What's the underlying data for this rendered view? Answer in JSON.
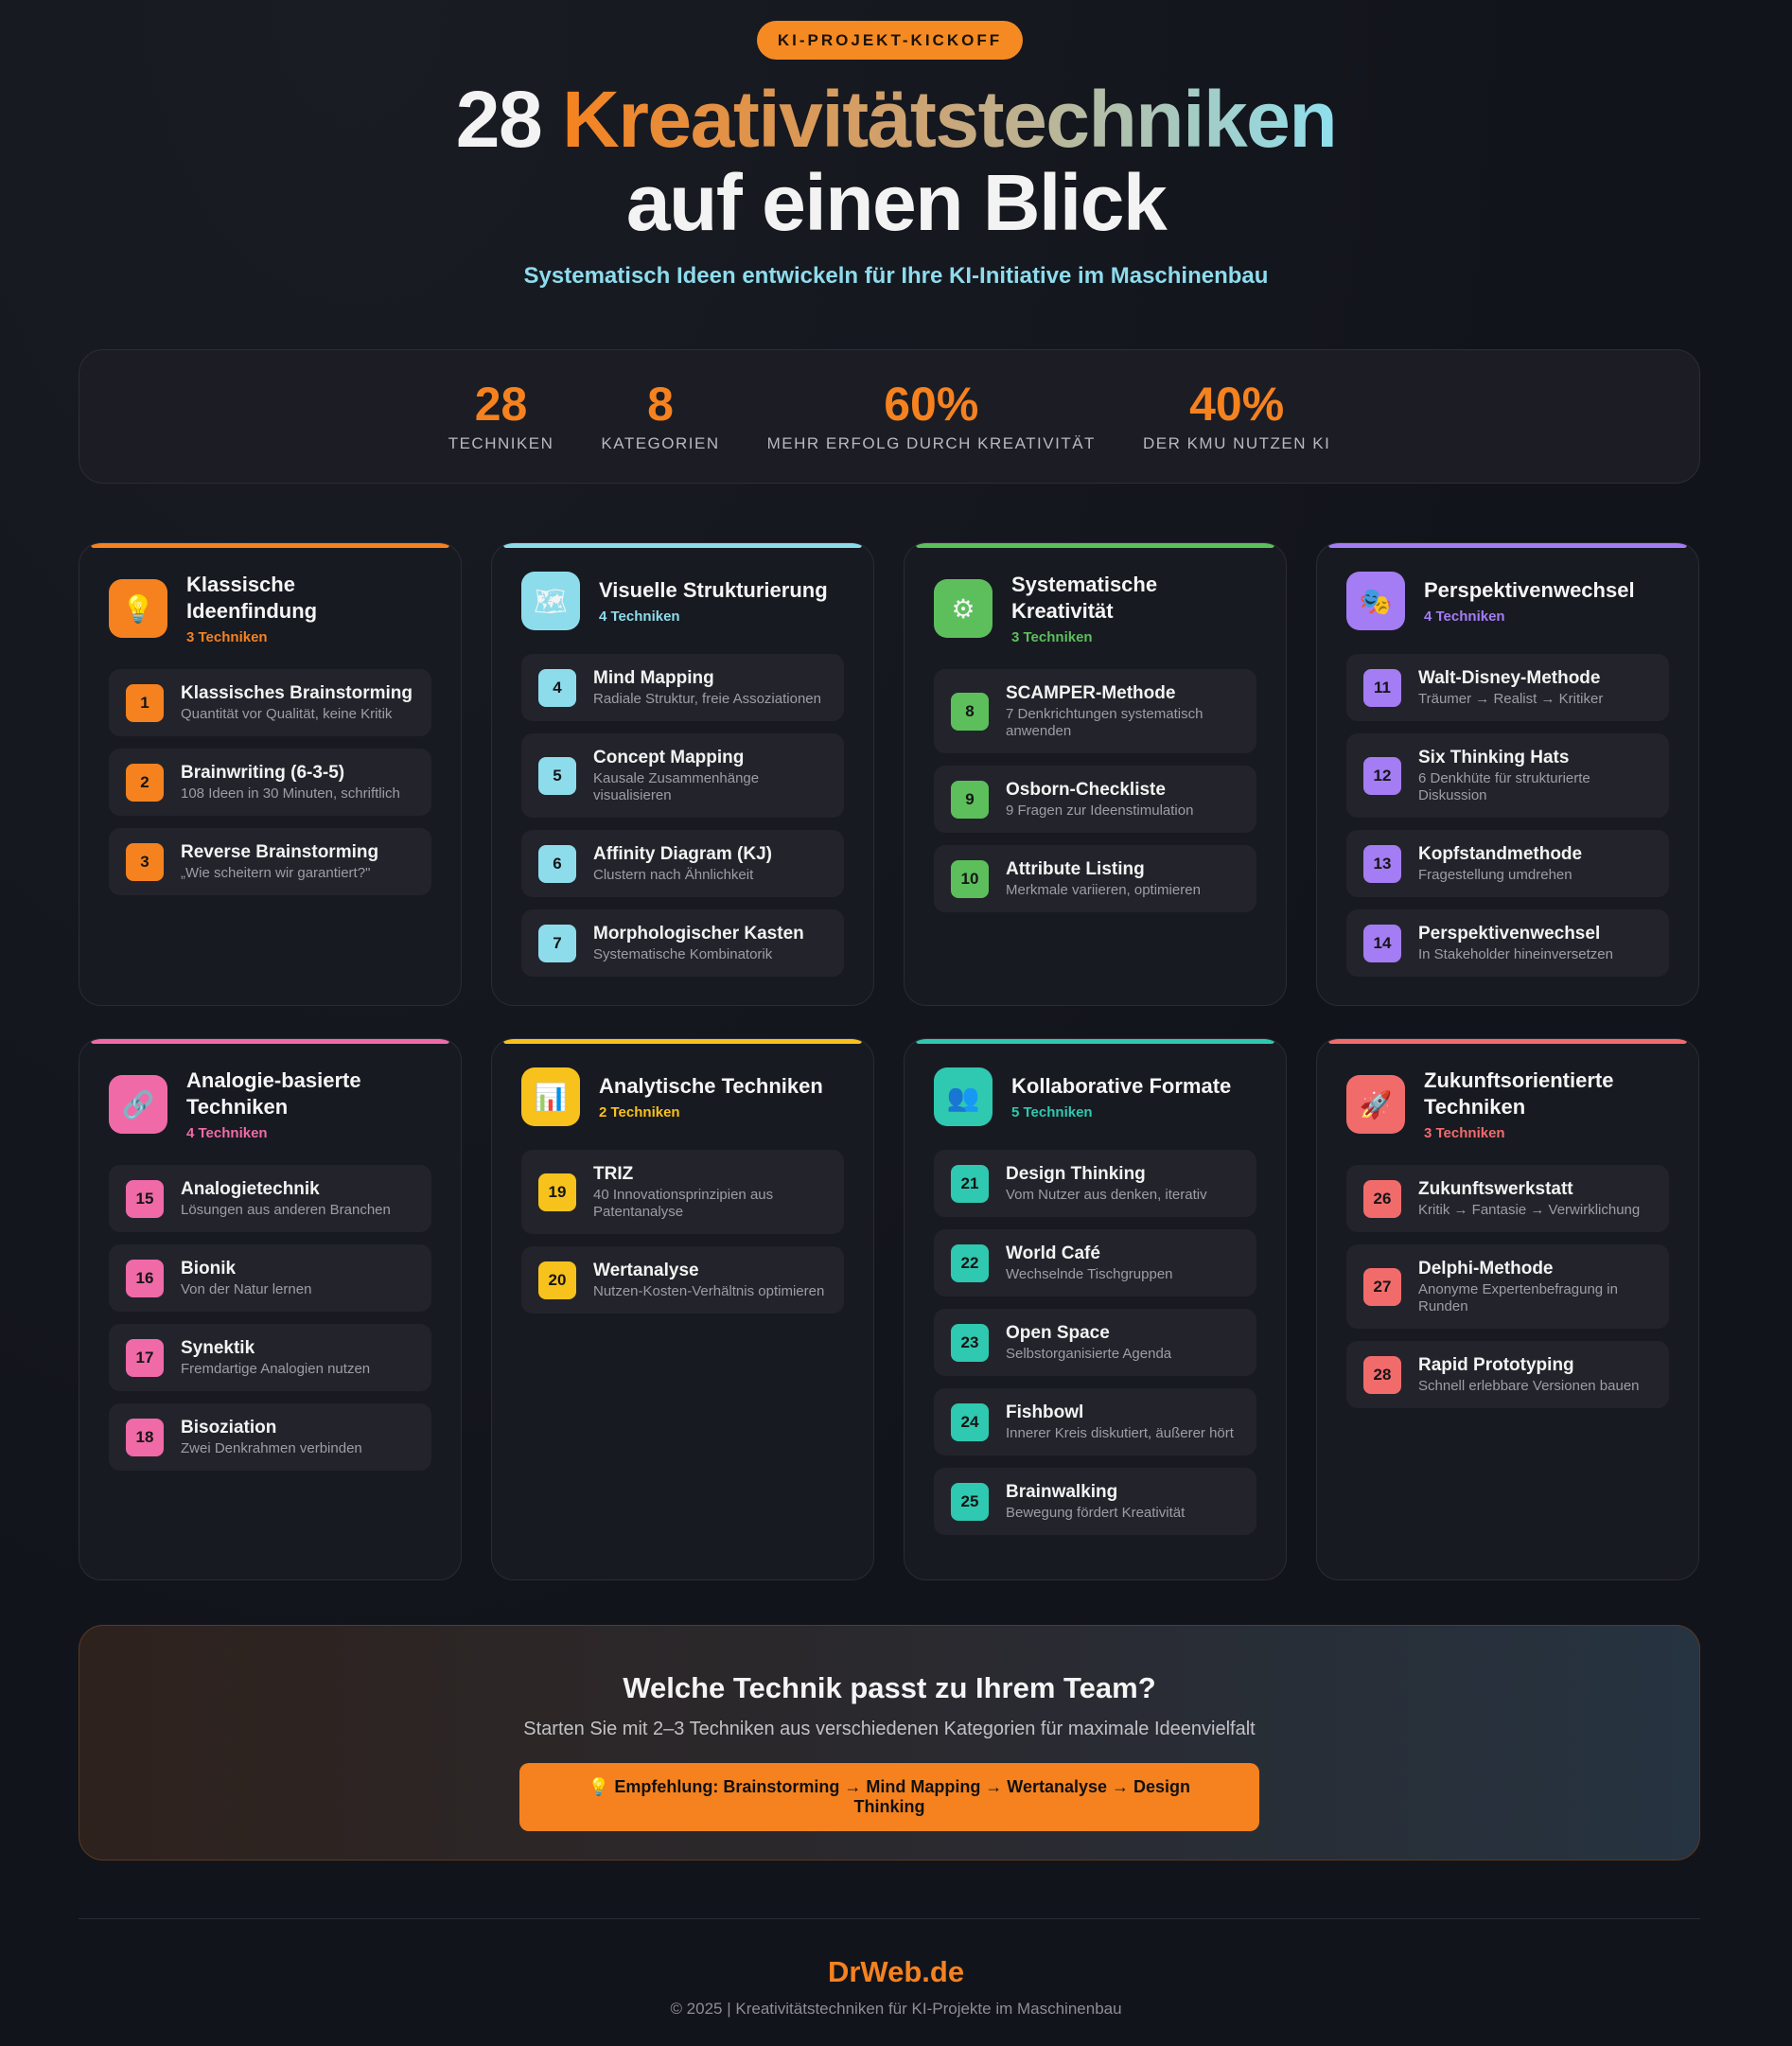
{
  "badge": "KI-PROJEKT-KICKOFF",
  "title": {
    "prefix": "28 ",
    "highlight": "Kreativitätstechniken",
    "line2": "auf einen Blick"
  },
  "subtitle": "Systematisch Ideen entwickeln für Ihre KI-Initiative im Maschinenbau",
  "stats": [
    {
      "value": "28",
      "label": "TECHNIKEN"
    },
    {
      "value": "8",
      "label": "KATEGORIEN"
    },
    {
      "value": "60%",
      "label": "MEHR ERFOLG DURCH KREATIVITÄT"
    },
    {
      "value": "40%",
      "label": "DER KMU NUTZEN KI"
    }
  ],
  "categories": [
    {
      "title": "Klassische Ideenfindung",
      "count": "3 Techniken",
      "icon": "lightbulb-icon",
      "glyph": "💡",
      "color": "#f5821f",
      "items": [
        {
          "n": "1",
          "name": "Klassisches Brainstorming",
          "desc": "Quantität vor Qualität, keine Kritik"
        },
        {
          "n": "2",
          "name": "Brainwriting (6-3-5)",
          "desc": "108 Ideen in 30 Minuten, schriftlich"
        },
        {
          "n": "3",
          "name": "Reverse Brainstorming",
          "desc": "„Wie scheitern wir garantiert?\""
        }
      ]
    },
    {
      "title": "Visuelle Strukturierung",
      "count": "4 Techniken",
      "icon": "map-icon",
      "glyph": "🗺",
      "color": "#8ddcec",
      "items": [
        {
          "n": "4",
          "name": "Mind Mapping",
          "desc": "Radiale Struktur, freie Assoziationen"
        },
        {
          "n": "5",
          "name": "Concept Mapping",
          "desc": "Kausale Zusammenhänge visualisieren"
        },
        {
          "n": "6",
          "name": "Affinity Diagram (KJ)",
          "desc": "Clustern nach Ähnlichkeit"
        },
        {
          "n": "7",
          "name": "Morphologischer Kasten",
          "desc": "Systematische Kombinatorik"
        }
      ]
    },
    {
      "title": "Systematische Kreativität",
      "count": "3 Techniken",
      "icon": "gear-icon",
      "glyph": "⚙",
      "color": "#5cbf5c",
      "items": [
        {
          "n": "8",
          "name": "SCAMPER-Methode",
          "desc": "7 Denkrichtungen systematisch anwenden"
        },
        {
          "n": "9",
          "name": "Osborn-Checkliste",
          "desc": "9 Fragen zur Ideenstimulation"
        },
        {
          "n": "10",
          "name": "Attribute Listing",
          "desc": "Merkmale variieren, optimieren"
        }
      ]
    },
    {
      "title": "Perspektivenwechsel",
      "count": "4 Techniken",
      "icon": "theater-masks-icon",
      "glyph": "🎭",
      "color": "#a47cf3",
      "items": [
        {
          "n": "11",
          "name": "Walt-Disney-Methode",
          "desc": "Träumer → Realist → Kritiker"
        },
        {
          "n": "12",
          "name": "Six Thinking Hats",
          "desc": "6 Denkhüte für strukturierte Diskussion"
        },
        {
          "n": "13",
          "name": "Kopfstandmethode",
          "desc": "Fragestellung umdrehen"
        },
        {
          "n": "14",
          "name": "Perspektivenwechsel",
          "desc": "In Stakeholder hineinversetzen"
        }
      ]
    },
    {
      "title": "Analogie-basierte Techniken",
      "count": "4 Techniken",
      "icon": "link-icon",
      "glyph": "🔗",
      "color": "#f06aa8",
      "items": [
        {
          "n": "15",
          "name": "Analogietechnik",
          "desc": "Lösungen aus anderen Branchen"
        },
        {
          "n": "16",
          "name": "Bionik",
          "desc": "Von der Natur lernen"
        },
        {
          "n": "17",
          "name": "Synektik",
          "desc": "Fremdartige Analogien nutzen"
        },
        {
          "n": "18",
          "name": "Bisoziation",
          "desc": "Zwei Denkrahmen verbinden"
        }
      ]
    },
    {
      "title": "Analytische Techniken",
      "count": "2 Techniken",
      "icon": "bar-chart-icon",
      "glyph": "📊",
      "color": "#f8c21c",
      "items": [
        {
          "n": "19",
          "name": "TRIZ",
          "desc": "40 Innovationsprinzipien aus Patentanalyse"
        },
        {
          "n": "20",
          "name": "Wertanalyse",
          "desc": "Nutzen-Kosten-Verhältnis optimieren"
        }
      ]
    },
    {
      "title": "Kollaborative Formate",
      "count": "5 Techniken",
      "icon": "people-icon",
      "glyph": "👥",
      "color": "#2ec9b0",
      "items": [
        {
          "n": "21",
          "name": "Design Thinking",
          "desc": "Vom Nutzer aus denken, iterativ"
        },
        {
          "n": "22",
          "name": "World Café",
          "desc": "Wechselnde Tischgruppen"
        },
        {
          "n": "23",
          "name": "Open Space",
          "desc": "Selbstorganisierte Agenda"
        },
        {
          "n": "24",
          "name": "Fishbowl",
          "desc": "Innerer Kreis diskutiert, äußerer hört"
        },
        {
          "n": "25",
          "name": "Brainwalking",
          "desc": "Bewegung fördert Kreativität"
        }
      ]
    },
    {
      "title": "Zukunftsorientierte Techniken",
      "count": "3 Techniken",
      "icon": "rocket-icon",
      "glyph": "🚀",
      "color": "#f26b6b",
      "items": [
        {
          "n": "26",
          "name": "Zukunftswerkstatt",
          "desc": "Kritik → Fantasie → Verwirklichung"
        },
        {
          "n": "27",
          "name": "Delphi-Methode",
          "desc": "Anonyme Expertenbefragung in Runden"
        },
        {
          "n": "28",
          "name": "Rapid Prototyping",
          "desc": "Schnell erlebbare Versionen bauen"
        }
      ]
    }
  ],
  "cta": {
    "title": "Welche Technik passt zu Ihrem Team?",
    "text": "Starten Sie mit 2–3 Techniken aus verschiedenen Kategorien für maximale Ideenvielfalt",
    "button": "💡 Empfehlung: Brainstorming → Mind Mapping → Wertanalyse → Design Thinking"
  },
  "footer": {
    "brand": "DrWeb.de",
    "copyright": "© 2025 | Kreativitätstechniken für KI-Projekte im Maschinenbau"
  }
}
